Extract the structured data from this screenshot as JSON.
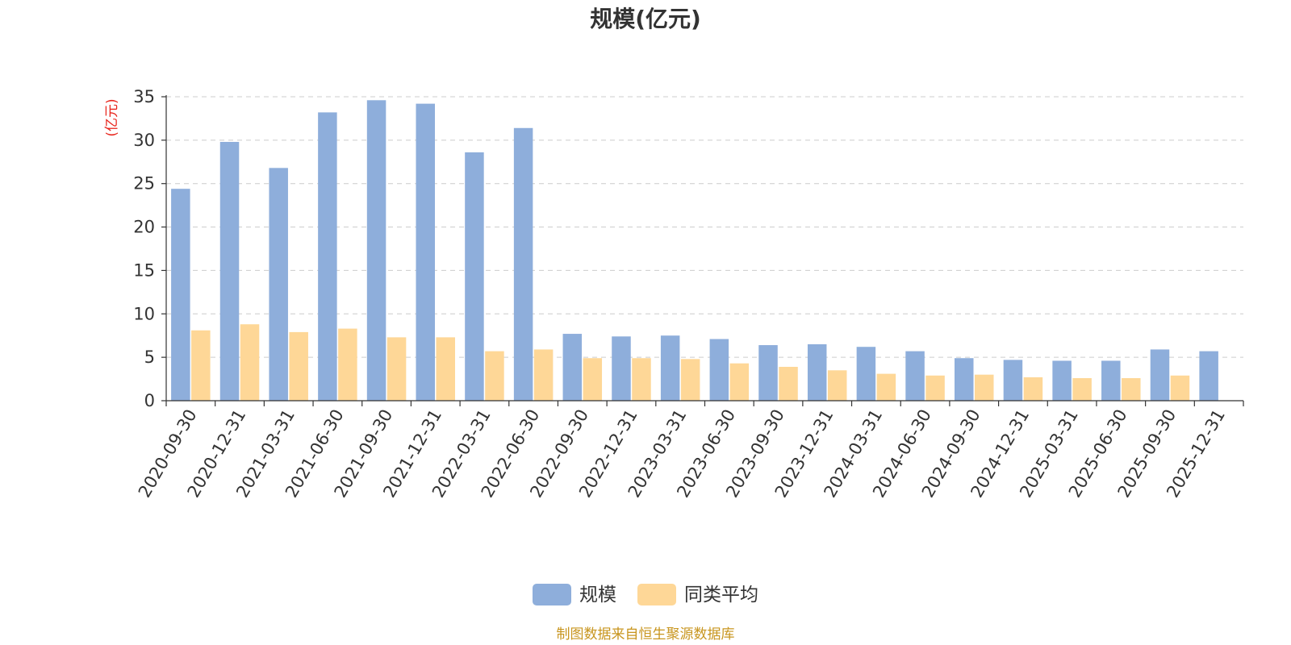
{
  "chart_data": {
    "type": "bar",
    "title": "规模(亿元)",
    "ylabel": "(亿元)",
    "xlabel": "",
    "ylim": [
      0,
      35
    ],
    "yticks": [
      0,
      5,
      10,
      15,
      20,
      25,
      30,
      35
    ],
    "grid": true,
    "legend_position": "bottom",
    "categories": [
      "2020-09-30",
      "2020-12-31",
      "2021-03-31",
      "2021-06-30",
      "2021-09-30",
      "2021-12-31",
      "2022-03-31",
      "2022-06-30",
      "2022-09-30",
      "2022-12-31",
      "2023-03-31",
      "2023-06-30",
      "2023-09-30",
      "2023-12-31",
      "2024-03-31",
      "2024-06-30",
      "2024-09-30",
      "2024-12-31",
      "2025-03-31",
      "2025-06-30",
      "2025-09-30",
      "2025-12-31"
    ],
    "series": [
      {
        "name": "规模",
        "color": "#8eaedb",
        "values": [
          24.4,
          29.8,
          26.8,
          33.2,
          34.6,
          34.2,
          28.6,
          31.4,
          7.7,
          7.4,
          7.5,
          7.1,
          6.4,
          6.5,
          6.2,
          5.7,
          4.9,
          4.7,
          4.6,
          4.6,
          5.9,
          5.7
        ]
      },
      {
        "name": "同类平均",
        "color": "#fed797",
        "values": [
          8.1,
          8.8,
          7.9,
          8.3,
          7.3,
          7.3,
          5.7,
          5.9,
          4.9,
          4.9,
          4.8,
          4.3,
          3.9,
          3.5,
          3.1,
          2.9,
          3.0,
          2.7,
          2.6,
          2.6,
          2.9,
          null
        ]
      }
    ]
  },
  "source_note": "制图数据来自恒生聚源数据库",
  "colors": {
    "unit_label": "#e8231a",
    "source_note": "#c8951e",
    "axis": "#333333",
    "grid": "#cccccc"
  }
}
